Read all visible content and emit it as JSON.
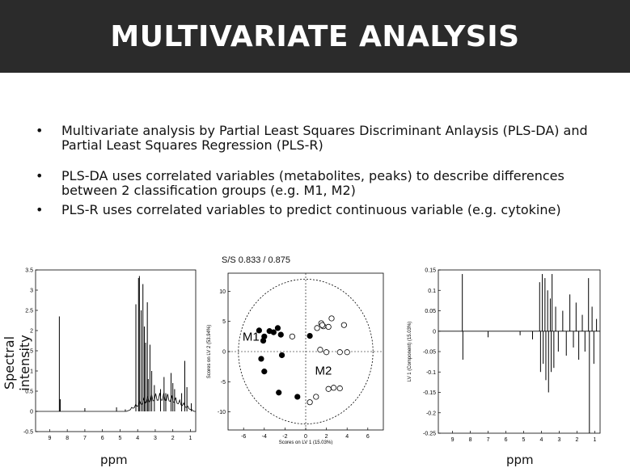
{
  "slide": {
    "title": "MULTIVARIATE ANALYSIS",
    "bullets": [
      {
        "symbol": "•",
        "text": "Multivariate analysis by Partial Least Squares Discriminant Anlaysis (PLS-DA) and Partial Least Squares Regression (PLS-R)"
      },
      {
        "symbol": "•",
        "text": "PLS-DA uses correlated variables (metabolites, peaks) to describe differences between 2 classification groups (e.g. M1, M2)"
      },
      {
        "symbol": "•",
        "text": "PLS-R uses correlated variables to predict continuous variable (e.g. cytokine)"
      }
    ],
    "figure_labels": {
      "spectral_ylabel": "Spectral intensity",
      "ppm_left": "ppm",
      "ppm_right": "ppm",
      "ss": "S/S 0.833 / 0.875"
    },
    "colors": {
      "banner": "#2b2b2b",
      "banner_text": "#ffffff"
    }
  },
  "chart_data": [
    {
      "type": "line",
      "x_reversed": true,
      "xlim": [
        9.8,
        0.7
      ],
      "ylim": [
        -0.5,
        3.5
      ],
      "xticks": [
        "9",
        "8",
        "7",
        "6",
        "5",
        "4",
        "3",
        "2",
        "1"
      ],
      "yticks": [
        "-0.5",
        "0",
        "0.5",
        "1",
        "1.5",
        "2",
        "2.5",
        "3",
        "3.5"
      ],
      "ylabel": "Spectral intensity",
      "xlabel": "ppm",
      "baseline": 0,
      "peaks": [
        {
          "x": 8.45,
          "y": 2.35
        },
        {
          "x": 8.4,
          "y": 0.3
        },
        {
          "x": 7.0,
          "y": 0.08
        },
        {
          "x": 5.2,
          "y": 0.1
        },
        {
          "x": 4.7,
          "y": 0.05
        },
        {
          "x": 4.1,
          "y": 2.65
        },
        {
          "x": 3.95,
          "y": 3.3
        },
        {
          "x": 3.9,
          "y": 3.35
        },
        {
          "x": 3.8,
          "y": 2.5
        },
        {
          "x": 3.7,
          "y": 3.15
        },
        {
          "x": 3.62,
          "y": 2.1
        },
        {
          "x": 3.55,
          "y": 1.7
        },
        {
          "x": 3.45,
          "y": 2.7
        },
        {
          "x": 3.4,
          "y": 0.8
        },
        {
          "x": 3.3,
          "y": 1.65
        },
        {
          "x": 3.2,
          "y": 1.0
        },
        {
          "x": 3.05,
          "y": 0.65
        },
        {
          "x": 2.7,
          "y": 0.55
        },
        {
          "x": 2.5,
          "y": 0.85
        },
        {
          "x": 2.4,
          "y": 0.45
        },
        {
          "x": 2.1,
          "y": 0.95
        },
        {
          "x": 2.0,
          "y": 0.7
        },
        {
          "x": 1.9,
          "y": 0.55
        },
        {
          "x": 1.5,
          "y": 0.45
        },
        {
          "x": 1.32,
          "y": 1.25
        },
        {
          "x": 1.2,
          "y": 0.6
        },
        {
          "x": 0.95,
          "y": 0.2
        }
      ]
    },
    {
      "type": "scatter",
      "xlim": [
        -7.5,
        7.5
      ],
      "ylim": [
        -13,
        13
      ],
      "xticks": [
        "-6",
        "-4",
        "-2",
        "0",
        "2",
        "4",
        "6"
      ],
      "yticks": [
        "-10",
        "-5",
        "0",
        "5",
        "10"
      ],
      "xlabel": "Scores on LV 1 (15.03%)",
      "ylabel": "Scores on LV 2 (53.94%)",
      "ellipse": {
        "rx": 6.5,
        "ry": 12
      },
      "series": [
        {
          "name": "M1",
          "marker": "filled",
          "points": [
            [
              -4.5,
              3.5
            ],
            [
              -4.0,
              2.5
            ],
            [
              -4.1,
              1.8
            ],
            [
              -3.5,
              3.4
            ],
            [
              -3.1,
              3.2
            ],
            [
              -2.7,
              3.9
            ],
            [
              -2.4,
              2.8
            ],
            [
              0.4,
              2.6
            ],
            [
              -4.3,
              -1.2
            ],
            [
              -4.0,
              -3.3
            ],
            [
              -2.3,
              -0.6
            ],
            [
              -2.6,
              -6.8
            ],
            [
              -0.8,
              -7.5
            ]
          ]
        },
        {
          "name": "M2",
          "marker": "open",
          "points": [
            [
              -1.3,
              2.5
            ],
            [
              1.1,
              3.9
            ],
            [
              1.5,
              4.7
            ],
            [
              1.7,
              4.2
            ],
            [
              2.2,
              4.1
            ],
            [
              2.5,
              5.5
            ],
            [
              1.6,
              4.4
            ],
            [
              3.7,
              4.4
            ],
            [
              1.4,
              0.3
            ],
            [
              2.0,
              -0.1
            ],
            [
              3.3,
              -0.1
            ],
            [
              4.0,
              -0.1
            ],
            [
              1.0,
              -7.5
            ],
            [
              2.2,
              -6.2
            ],
            [
              2.7,
              -6.0
            ],
            [
              3.3,
              -6.1
            ],
            [
              0.4,
              -8.4
            ]
          ]
        }
      ]
    },
    {
      "type": "line",
      "x_reversed": true,
      "xlim": [
        9.8,
        0.7
      ],
      "ylim": [
        -0.25,
        0.15
      ],
      "xticks": [
        "9",
        "8",
        "7",
        "6",
        "5",
        "4",
        "3",
        "2",
        "1"
      ],
      "yticks": [
        "-0.25",
        "-0.2",
        "-0.15",
        "-0.1",
        "-0.05",
        "0",
        "0.05",
        "0.1",
        "0.15"
      ],
      "ylabel": "LV 1 (Component) (15.03%)",
      "xlabel": "ppm",
      "baseline": 0,
      "peaks": [
        {
          "x": 8.45,
          "y": 0.14
        },
        {
          "x": 8.42,
          "y": -0.07
        },
        {
          "x": 7.0,
          "y": -0.015
        },
        {
          "x": 5.2,
          "y": -0.01
        },
        {
          "x": 4.5,
          "y": -0.02
        },
        {
          "x": 4.1,
          "y": 0.12
        },
        {
          "x": 4.05,
          "y": -0.1
        },
        {
          "x": 3.95,
          "y": 0.14
        },
        {
          "x": 3.9,
          "y": -0.08
        },
        {
          "x": 3.8,
          "y": 0.13
        },
        {
          "x": 3.75,
          "y": -0.12
        },
        {
          "x": 3.65,
          "y": 0.1
        },
        {
          "x": 3.6,
          "y": -0.15
        },
        {
          "x": 3.5,
          "y": 0.08
        },
        {
          "x": 3.45,
          "y": -0.1
        },
        {
          "x": 3.4,
          "y": 0.14
        },
        {
          "x": 3.3,
          "y": -0.09
        },
        {
          "x": 3.2,
          "y": 0.06
        },
        {
          "x": 3.05,
          "y": -0.05
        },
        {
          "x": 2.8,
          "y": 0.05
        },
        {
          "x": 2.6,
          "y": -0.06
        },
        {
          "x": 2.4,
          "y": 0.09
        },
        {
          "x": 2.2,
          "y": -0.04
        },
        {
          "x": 2.05,
          "y": 0.07
        },
        {
          "x": 1.9,
          "y": -0.07
        },
        {
          "x": 1.7,
          "y": 0.04
        },
        {
          "x": 1.55,
          "y": -0.05
        },
        {
          "x": 1.35,
          "y": 0.13
        },
        {
          "x": 1.3,
          "y": -0.25
        },
        {
          "x": 1.15,
          "y": 0.06
        },
        {
          "x": 1.05,
          "y": -0.08
        },
        {
          "x": 0.9,
          "y": 0.03
        }
      ]
    }
  ]
}
